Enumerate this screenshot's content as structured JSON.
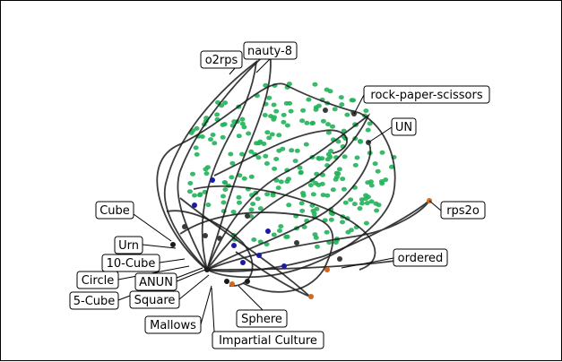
{
  "figure": {
    "labels": [
      {
        "id": "o2rps",
        "text": "o2rps"
      },
      {
        "id": "nauty8",
        "text": "nauty-8"
      },
      {
        "id": "rps",
        "text": "rock-paper-scissors"
      },
      {
        "id": "un",
        "text": "UN"
      },
      {
        "id": "rps2o",
        "text": "rps2o"
      },
      {
        "id": "ordered",
        "text": "ordered"
      },
      {
        "id": "cube",
        "text": "Cube"
      },
      {
        "id": "urn",
        "text": "Urn"
      },
      {
        "id": "tencube",
        "text": "10-Cube"
      },
      {
        "id": "circle",
        "text": "Circle"
      },
      {
        "id": "anun",
        "text": "ANUN"
      },
      {
        "id": "fivecube",
        "text": "5-Cube"
      },
      {
        "id": "square",
        "text": "Square"
      },
      {
        "id": "mallows",
        "text": "Mallows"
      },
      {
        "id": "sphere",
        "text": "Sphere"
      },
      {
        "id": "ic",
        "text": "Impartial Culture"
      }
    ],
    "colors": {
      "cloud": "#22b35a",
      "path": "#1a1a1a",
      "accent_blue": "#1a1aa8",
      "accent_orange": "#d2691e",
      "accent_dark": "#3a3a3a"
    }
  }
}
